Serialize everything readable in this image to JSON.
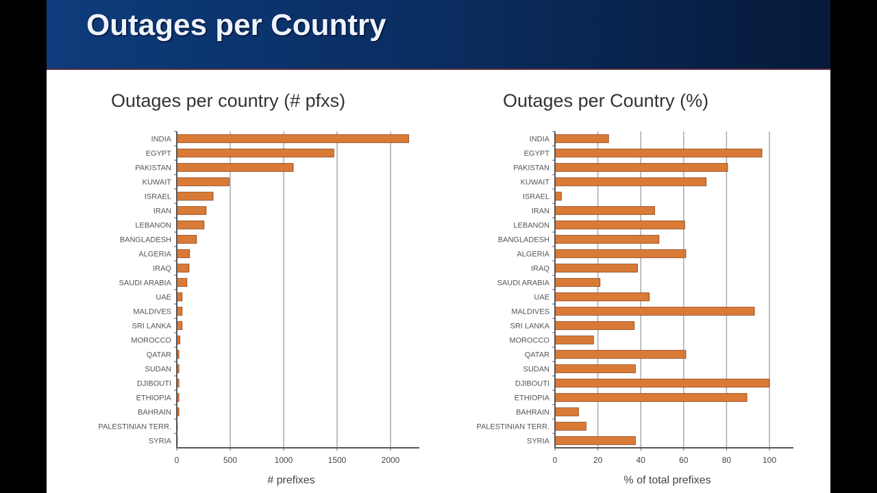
{
  "slide": {
    "title": "Outages per Country"
  },
  "colors": {
    "bar": "#d97a36",
    "bar_edge": "#8a3e12",
    "grid": "#aaaaaa",
    "axis": "#555555"
  },
  "chart_data": [
    {
      "type": "bar",
      "orientation": "horizontal",
      "title": "Outages per country (# pfxs)",
      "xlabel": "# prefixes",
      "ylabel": "",
      "xlim": [
        0,
        2200
      ],
      "xticks": [
        0,
        500,
        1000,
        1500,
        2000
      ],
      "xtick_labels": [
        "0",
        "500",
        "1000",
        "1500",
        "2000"
      ],
      "grid": true,
      "categories": [
        "INDIA",
        "EGYPT",
        "PAKISTAN",
        "KUWAIT",
        "ISRAEL",
        "IRAN",
        "LEBANON",
        "BANGLADESH",
        "ALGERIA",
        "IRAQ",
        "SAUDI ARABIA",
        "UAE",
        "MALDIVES",
        "SRI LANKA",
        "MOROCCO",
        "QATAR",
        "SUDAN",
        "DJIBOUTI",
        "ETHIOPIA",
        "BAHRAIN",
        "PALESTINIAN TERR.",
        "SYRIA"
      ],
      "values": [
        2170,
        1470,
        1090,
        490,
        340,
        275,
        255,
        185,
        120,
        115,
        95,
        50,
        50,
        50,
        30,
        20,
        20,
        20,
        20,
        20,
        5,
        5
      ]
    },
    {
      "type": "bar",
      "orientation": "horizontal",
      "title": "Outages per Country (%)",
      "xlabel": "% of total prefixes",
      "ylabel": "",
      "xlim": [
        0,
        110
      ],
      "xticks": [
        0,
        20,
        40,
        60,
        80,
        100
      ],
      "xtick_labels": [
        "0",
        "20",
        "40",
        "60",
        "80",
        "100"
      ],
      "grid": true,
      "categories": [
        "INDIA",
        "EGYPT",
        "PAKISTAN",
        "KUWAIT",
        "ISRAEL",
        "IRAN",
        "LEBANON",
        "BANGLADESH",
        "ALGERIA",
        "IRAQ",
        "SAUDI ARABIA",
        "UAE",
        "MALDIVES",
        "SRI LANKA",
        "MOROCCO",
        "QATAR",
        "SUDAN",
        "DJIBOUTI",
        "ETHIOPIA",
        "BAHRAIN",
        "PALESTINIAN TERR.",
        "SYRIA"
      ],
      "values": [
        25,
        96.5,
        80.5,
        70.5,
        3,
        46.5,
        60.5,
        48.5,
        61,
        38.5,
        21,
        44,
        93,
        37,
        18,
        61,
        37.5,
        100,
        89.5,
        11,
        14.5,
        37.5
      ]
    }
  ]
}
